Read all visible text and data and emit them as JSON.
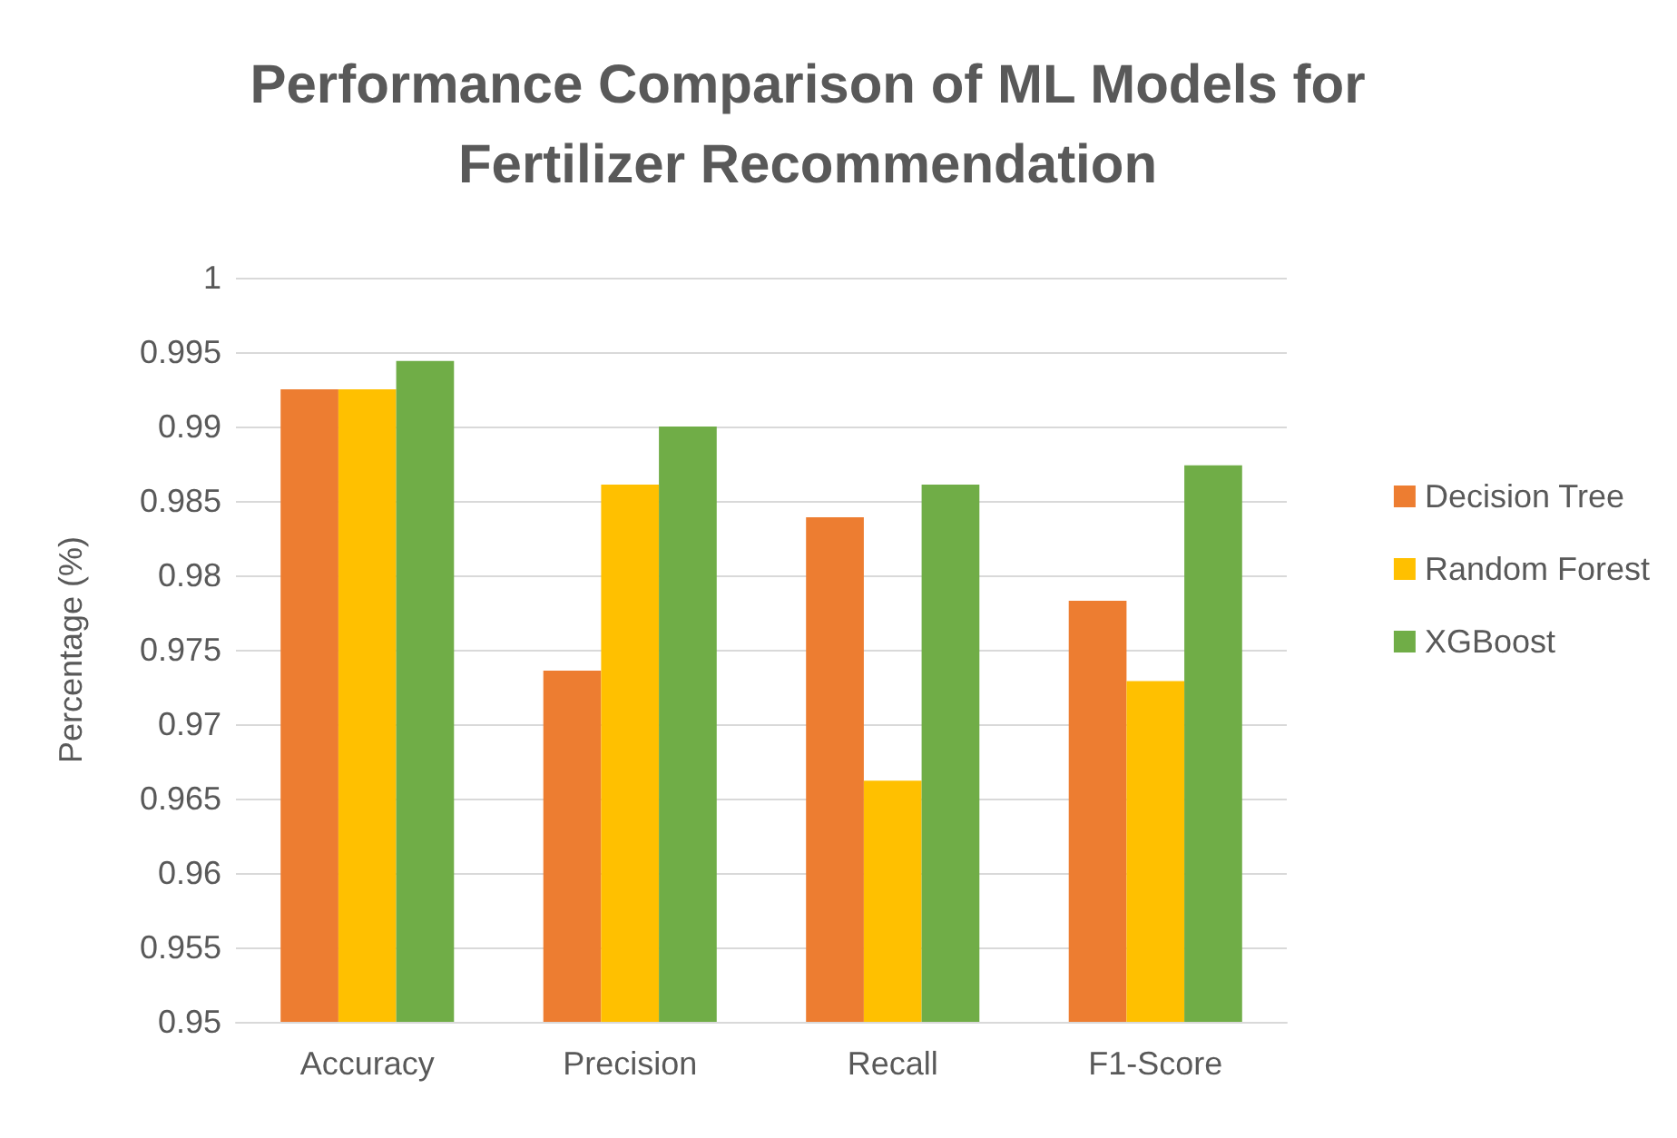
{
  "chart_data": {
    "type": "bar",
    "title": "Performance Comparison of ML Models for\nFertilizer Recommendation",
    "ylabel": "Percentage (%)",
    "categories": [
      "Accuracy",
      "Precision",
      "Recall",
      "F1-Score"
    ],
    "series": [
      {
        "name": "Decision Tree",
        "color": "#ed7d31",
        "values": [
          0.9925,
          0.9736,
          0.9839,
          0.9783
        ]
      },
      {
        "name": "Random Forest",
        "color": "#ffc000",
        "values": [
          0.9925,
          0.9861,
          0.9662,
          0.9729
        ]
      },
      {
        "name": "XGBoost",
        "color": "#70ad47",
        "values": [
          0.9944,
          0.99,
          0.9861,
          0.9874
        ]
      }
    ],
    "ylim": [
      0.95,
      1
    ],
    "yticks": [
      0.95,
      0.955,
      0.96,
      0.965,
      0.97,
      0.975,
      0.98,
      0.985,
      0.99,
      0.995,
      1
    ],
    "grid": "y",
    "legend": "right"
  }
}
